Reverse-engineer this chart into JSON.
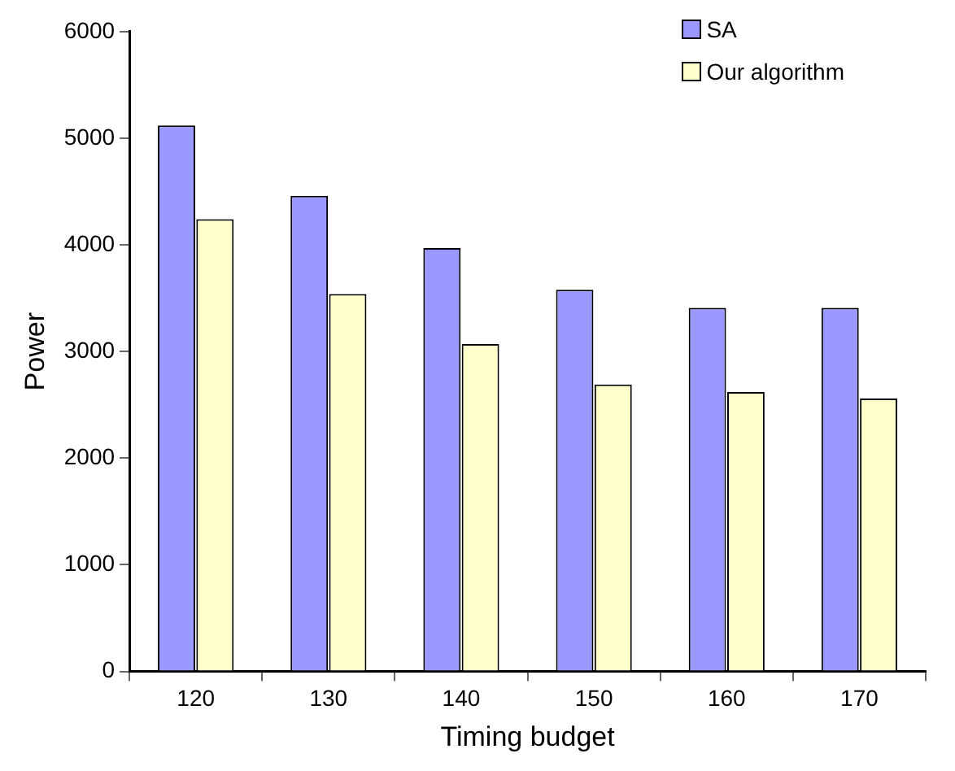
{
  "chart_data": {
    "type": "bar",
    "xlabel": "Timing budget",
    "ylabel": "Power",
    "categories": [
      "120",
      "130",
      "140",
      "150",
      "160",
      "170"
    ],
    "series": [
      {
        "name": "SA",
        "color": "#9999ff",
        "values": [
          5120,
          4460,
          3970,
          3580,
          3410,
          3410
        ]
      },
      {
        "name": "Our algorithm",
        "color": "#ffffcc",
        "values": [
          4240,
          3540,
          3070,
          2690,
          2620,
          2560
        ]
      }
    ],
    "ylim": [
      0,
      6000
    ],
    "yticks": [
      0,
      1000,
      2000,
      3000,
      4000,
      5000,
      6000
    ],
    "grid": false,
    "legend": "top right"
  }
}
